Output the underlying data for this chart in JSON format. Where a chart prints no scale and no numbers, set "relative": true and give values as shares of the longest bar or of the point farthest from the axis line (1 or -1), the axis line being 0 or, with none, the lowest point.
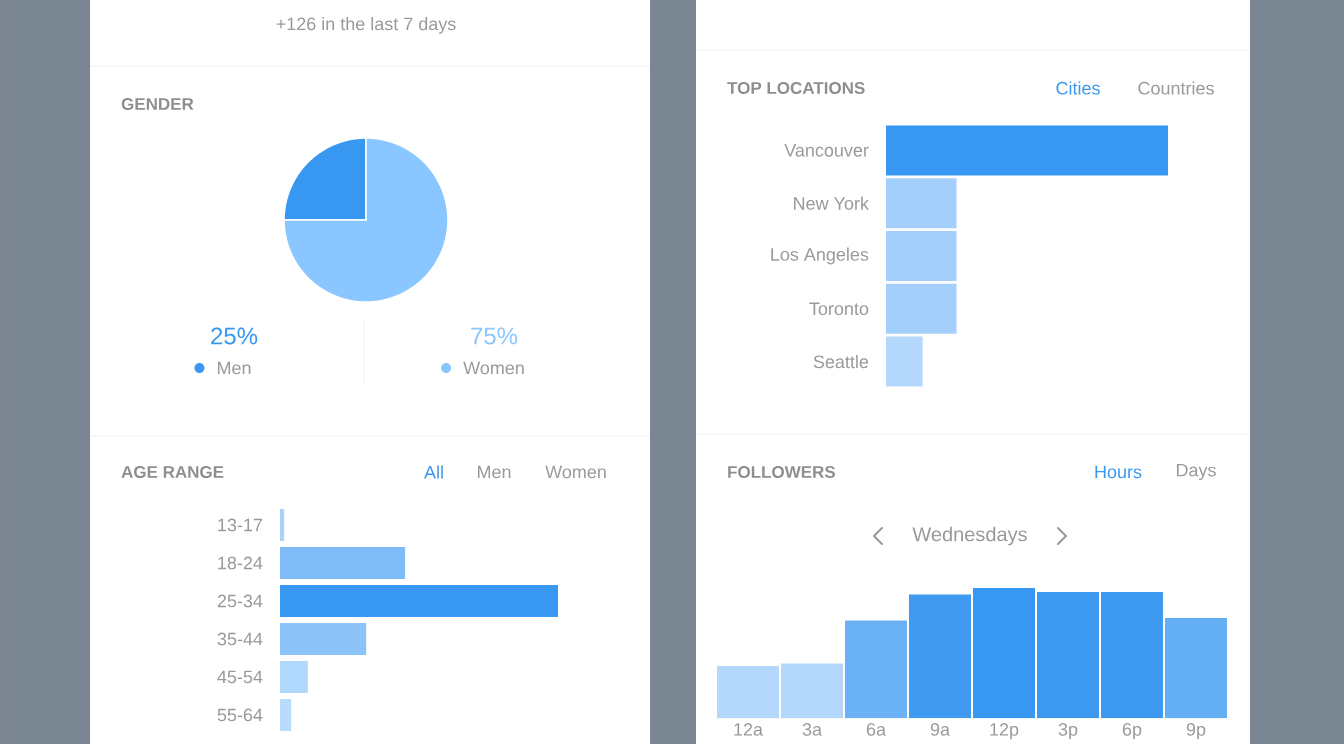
{
  "chart_data": [
    {
      "type": "pie",
      "title": "GENDER",
      "categories": [
        "Men",
        "Women"
      ],
      "values": [
        25,
        75
      ],
      "colors": [
        "#3897f0",
        "#8ac6ff"
      ],
      "value_labels": [
        "25%",
        "75%"
      ],
      "legend": "bottom",
      "annotations": [
        "+126 in the last 7 days"
      ]
    },
    {
      "type": "bar",
      "orientation": "horizontal",
      "relative": true,
      "title": "AGE RANGE",
      "categories": [
        "13-17",
        "18-24",
        "25-34",
        "35-44",
        "45-54",
        "55-64"
      ],
      "values": [
        0.015,
        0.45,
        1,
        0.31,
        0.1,
        0.04
      ],
      "colors": [
        "#a8d4fb",
        "#7fbbf6",
        "#3897f0",
        "#8cc3f8",
        "#b0d8fc",
        "#b8dcfc"
      ],
      "annotations": [
        "All",
        "Men",
        "Women"
      ]
    },
    {
      "type": "bar",
      "orientation": "horizontal",
      "relative": true,
      "title": "TOP LOCATIONS",
      "categories": [
        "Vancouver",
        "New York",
        "Los Angeles",
        "Toronto",
        "Seattle"
      ],
      "values": [
        1,
        0.25,
        0.25,
        0.25,
        0.13
      ],
      "colors": [
        "#3897f0",
        "#a3cffa",
        "#a3cffa",
        "#a3cffa",
        "#b3d8fc"
      ],
      "annotations": [
        "Cities",
        "Countries"
      ]
    },
    {
      "type": "bar",
      "relative": true,
      "title": "FOLLOWERS",
      "subtitle": "Wednesdays",
      "categories": [
        "12a",
        "3a",
        "6a",
        "9a",
        "12p",
        "3p",
        "6p",
        "9p"
      ],
      "values": [
        0.4,
        0.42,
        0.75,
        0.95,
        1,
        0.97,
        0.97,
        0.77
      ],
      "colors": [
        "#b3d8fc",
        "#b3d8fc",
        "#6ab2f5",
        "#3f9af0",
        "#3897f0",
        "#3d99f0",
        "#3d99f0",
        "#63aef4"
      ],
      "annotations": [
        "Hours",
        "Days"
      ]
    }
  ]
}
